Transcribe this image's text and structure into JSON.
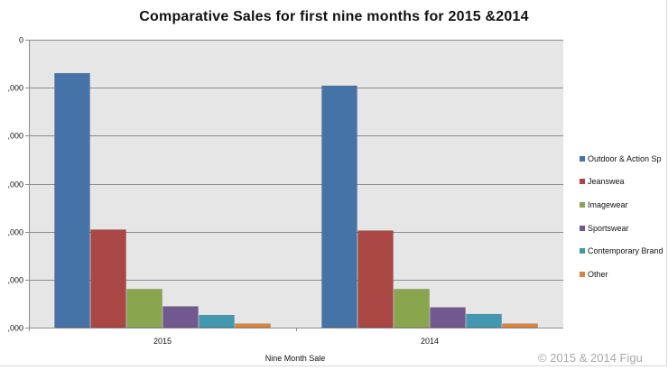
{
  "chart_data": {
    "type": "bar",
    "title": "Comparative Sales for first nine months for 2015 &2014",
    "xlabel": "Nine Month Sale",
    "ylabel": "",
    "categories": [
      "2015",
      "2014"
    ],
    "y_tick_labels": [
      ",000",
      ",000",
      ",000",
      ",000",
      ",000",
      ",000",
      "0"
    ],
    "ylim": [
      0,
      3000
    ],
    "y_ticks": [
      0,
      500,
      1000,
      1500,
      2000,
      2500,
      3000
    ],
    "grid": true,
    "legend_position": "right",
    "series": [
      {
        "name": "Outdoor & Action Sp",
        "color": "#4572A7",
        "values": [
          2650,
          2520
        ]
      },
      {
        "name": "Jeanswea",
        "color": "#AA4643",
        "values": [
          1020,
          1010
        ]
      },
      {
        "name": "Imagewear",
        "color": "#89A54E",
        "values": [
          400,
          400
        ]
      },
      {
        "name": "Sportswear",
        "color": "#71588F",
        "values": [
          220,
          210
        ]
      },
      {
        "name": "Contemporary Brand",
        "color": "#4198AF",
        "values": [
          130,
          140
        ]
      },
      {
        "name": "Other",
        "color": "#DB843D",
        "values": [
          40,
          40
        ]
      }
    ]
  },
  "watermark": "© 2015 & 2014 Figu"
}
